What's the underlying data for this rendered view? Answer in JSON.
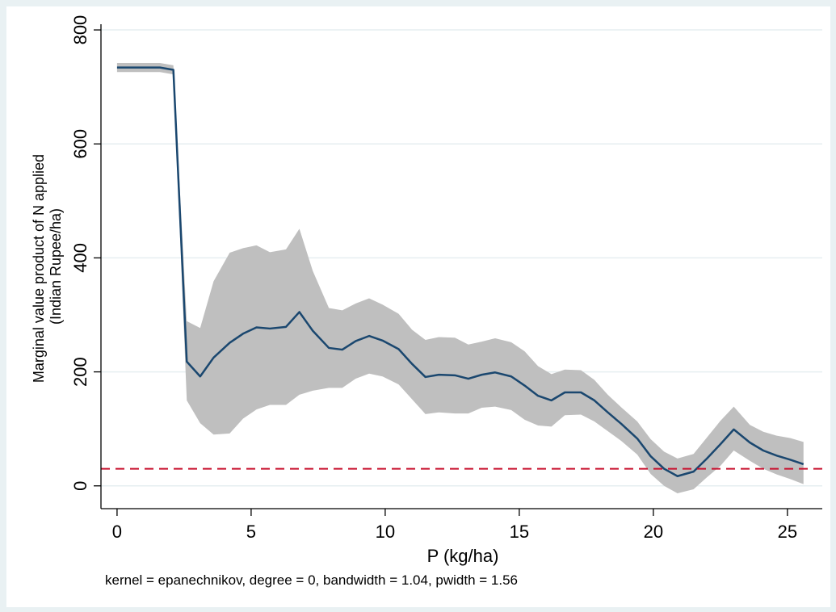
{
  "chart_data": {
    "type": "line",
    "xlabel": "P (kg/ha)",
    "ylabel_lines": [
      "Marginal value product of N applied",
      "(Indian Rupee/ha)"
    ],
    "note": "kernel = epanechnikov, degree = 0, bandwidth = 1.04, pwidth = 1.56",
    "xlim": [
      -0.6,
      26.3
    ],
    "ylim": [
      -40,
      810
    ],
    "x_ticks": [
      0,
      5,
      10,
      15,
      20,
      25
    ],
    "y_ticks": [
      0,
      200,
      400,
      600,
      800
    ],
    "grid": "horizontal",
    "reference_line": {
      "y": 30,
      "style": "dashed",
      "color": "#c8102e"
    },
    "colors": {
      "line": "#1a476f",
      "band": "#bfbfbf",
      "plot_bg": "#ffffff",
      "page_bg": "#e9f1f3"
    },
    "series": [
      {
        "x": [
          0,
          0.5,
          1.0,
          1.6,
          2.1,
          2.6,
          3.1,
          3.6,
          4.2,
          4.7,
          5.2,
          5.7,
          6.3,
          6.8,
          7.3,
          7.9,
          8.4,
          8.9,
          9.4,
          9.9,
          10.5,
          11.0,
          11.5,
          12.0,
          12.6,
          13.1,
          13.6,
          14.1,
          14.7,
          15.2,
          15.7,
          16.2,
          16.7,
          17.3,
          17.8,
          18.3,
          18.8,
          19.4,
          19.9,
          20.4,
          20.9,
          21.5,
          22.0,
          22.5,
          23.0,
          23.6,
          24.1,
          24.6,
          25.1,
          25.6
        ],
        "y": [
          734,
          734,
          734,
          734,
          730,
          218,
          192,
          225,
          251,
          267,
          278,
          276,
          279,
          305,
          272,
          242,
          239,
          254,
          263,
          255,
          240,
          214,
          191,
          195,
          194,
          188,
          195,
          199,
          192,
          176,
          158,
          150,
          164,
          164,
          150,
          129,
          109,
          83,
          52,
          30,
          17,
          25,
          48,
          73,
          99,
          76,
          62,
          53,
          46,
          38
        ],
        "upper": [
          742,
          742,
          742,
          742,
          738,
          289,
          277,
          359,
          409,
          417,
          422,
          410,
          415,
          451,
          377,
          312,
          308,
          320,
          329,
          318,
          302,
          274,
          256,
          261,
          260,
          248,
          253,
          259,
          252,
          236,
          210,
          196,
          204,
          203,
          186,
          160,
          138,
          113,
          82,
          60,
          48,
          56,
          85,
          114,
          139,
          107,
          95,
          88,
          84,
          77
        ],
        "lower": [
          726,
          726,
          726,
          726,
          722,
          150,
          110,
          90,
          92,
          118,
          134,
          142,
          142,
          160,
          167,
          172,
          172,
          188,
          197,
          192,
          178,
          152,
          126,
          129,
          127,
          127,
          137,
          139,
          133,
          116,
          106,
          104,
          124,
          125,
          113,
          96,
          79,
          55,
          21,
          0,
          -13,
          -6,
          15,
          35,
          62,
          44,
          30,
          20,
          12,
          3
        ]
      }
    ]
  }
}
